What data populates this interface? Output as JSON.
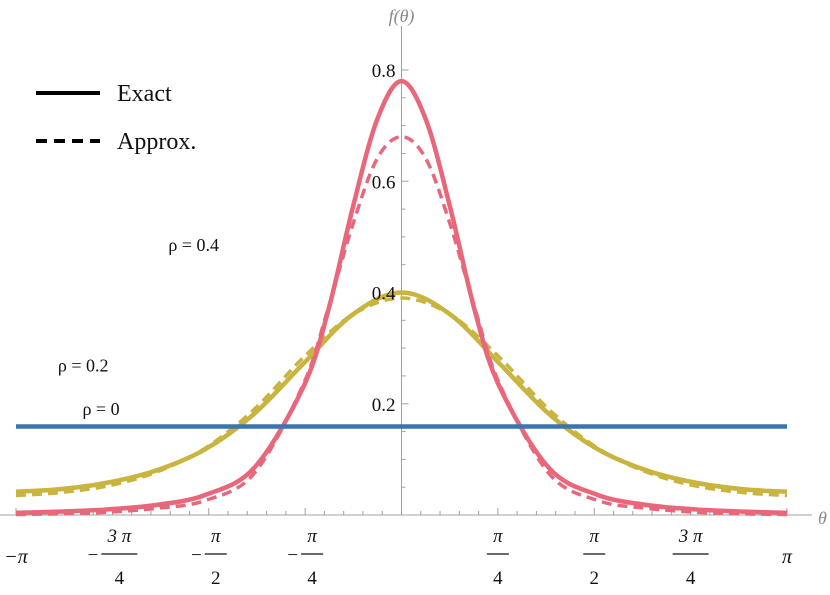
{
  "chart_data": {
    "type": "line",
    "x_axis_label": "θ",
    "y_axis_label": "f(θ)",
    "xlim": [
      -3.14159,
      3.14159
    ],
    "ylim": [
      0,
      0.8
    ],
    "x_ticks": [
      {
        "value": -3.14159,
        "label_top": "",
        "label_bottom": "−π",
        "sign": ""
      },
      {
        "value": -2.35619,
        "label_top": "3 π",
        "label_bottom": "4",
        "sign": "−"
      },
      {
        "value": -1.5708,
        "label_top": "π",
        "label_bottom": "2",
        "sign": "−"
      },
      {
        "value": -0.785398,
        "label_top": "π",
        "label_bottom": "4",
        "sign": "−"
      },
      {
        "value": 0.785398,
        "label_top": "π",
        "label_bottom": "4",
        "sign": ""
      },
      {
        "value": 1.5708,
        "label_top": "π",
        "label_bottom": "2",
        "sign": ""
      },
      {
        "value": 2.35619,
        "label_top": "3 π",
        "label_bottom": "4",
        "sign": ""
      },
      {
        "value": 3.14159,
        "label_top": "",
        "label_bottom": "π",
        "sign": ""
      }
    ],
    "y_ticks": [
      {
        "value": 0.2,
        "label": "0.2"
      },
      {
        "value": 0.4,
        "label": "0.4"
      },
      {
        "value": 0.6,
        "label": "0.6"
      },
      {
        "value": 0.8,
        "label": "0.8"
      }
    ],
    "legend": [
      {
        "label": "Exact",
        "style": "solid"
      },
      {
        "label": "Approx.",
        "style": "dashed"
      }
    ],
    "legend_position": "top-left",
    "series": [
      {
        "name": "ρ = 0",
        "curve": "exact",
        "style": "solid",
        "color": "#3b75af",
        "x": [
          -3.14159,
          3.14159
        ],
        "y": [
          0.159,
          0.159
        ]
      },
      {
        "name": "ρ = 0.2",
        "curve": "exact",
        "style": "solid",
        "color": "#c9b43f",
        "x": [
          -3.14159,
          -2.8,
          -2.4,
          -2.0,
          -1.6,
          -1.2,
          -0.8,
          -0.4,
          0.0,
          0.4,
          0.8,
          1.2,
          1.6,
          2.0,
          2.4,
          2.8,
          3.14159
        ],
        "y": [
          0.042,
          0.046,
          0.058,
          0.08,
          0.118,
          0.182,
          0.272,
          0.36,
          0.4,
          0.36,
          0.272,
          0.182,
          0.118,
          0.08,
          0.058,
          0.046,
          0.042
        ]
      },
      {
        "name": "ρ = 0.2",
        "curve": "approx",
        "style": "dashed",
        "color": "#c9b43f",
        "x": [
          -3.14159,
          -2.8,
          -2.4,
          -2.0,
          -1.6,
          -1.2,
          -0.8,
          -0.4,
          0.0,
          0.4,
          0.8,
          1.2,
          1.6,
          2.0,
          2.4,
          2.8,
          3.14159
        ],
        "y": [
          0.035,
          0.04,
          0.052,
          0.077,
          0.12,
          0.19,
          0.283,
          0.36,
          0.39,
          0.36,
          0.283,
          0.19,
          0.12,
          0.077,
          0.052,
          0.04,
          0.035
        ]
      },
      {
        "name": "ρ = 0.4",
        "curve": "exact",
        "style": "solid",
        "color": "#e8677b",
        "x": [
          -3.14159,
          -2.8,
          -2.4,
          -2.0,
          -1.6,
          -1.2,
          -0.8,
          -0.6,
          -0.4,
          -0.2,
          0.0,
          0.2,
          0.4,
          0.6,
          0.8,
          1.2,
          1.6,
          2.0,
          2.4,
          2.8,
          3.14159
        ],
        "y": [
          0.004,
          0.006,
          0.01,
          0.018,
          0.036,
          0.085,
          0.23,
          0.365,
          0.55,
          0.71,
          0.78,
          0.71,
          0.55,
          0.365,
          0.23,
          0.085,
          0.036,
          0.018,
          0.01,
          0.006,
          0.004
        ]
      },
      {
        "name": "ρ = 0.4",
        "curve": "approx",
        "style": "dashed",
        "color": "#e8677b",
        "x": [
          -3.14159,
          -2.8,
          -2.4,
          -2.0,
          -1.6,
          -1.2,
          -0.8,
          -0.6,
          -0.4,
          -0.2,
          0.0,
          0.2,
          0.4,
          0.6,
          0.8,
          1.2,
          1.6,
          2.0,
          2.4,
          2.8,
          3.14159
        ],
        "y": [
          0.001,
          0.002,
          0.005,
          0.012,
          0.026,
          0.075,
          0.235,
          0.37,
          0.52,
          0.64,
          0.68,
          0.64,
          0.52,
          0.37,
          0.235,
          0.075,
          0.026,
          0.012,
          0.005,
          0.002,
          0.001
        ]
      }
    ],
    "annotations": [
      {
        "text": "ρ = 0",
        "x": -2.6,
        "y": 0.18
      },
      {
        "text": "ρ = 0.2",
        "x": -2.8,
        "y": 0.258
      },
      {
        "text": "ρ = 0.4",
        "x": -1.9,
        "y": 0.475
      }
    ]
  }
}
